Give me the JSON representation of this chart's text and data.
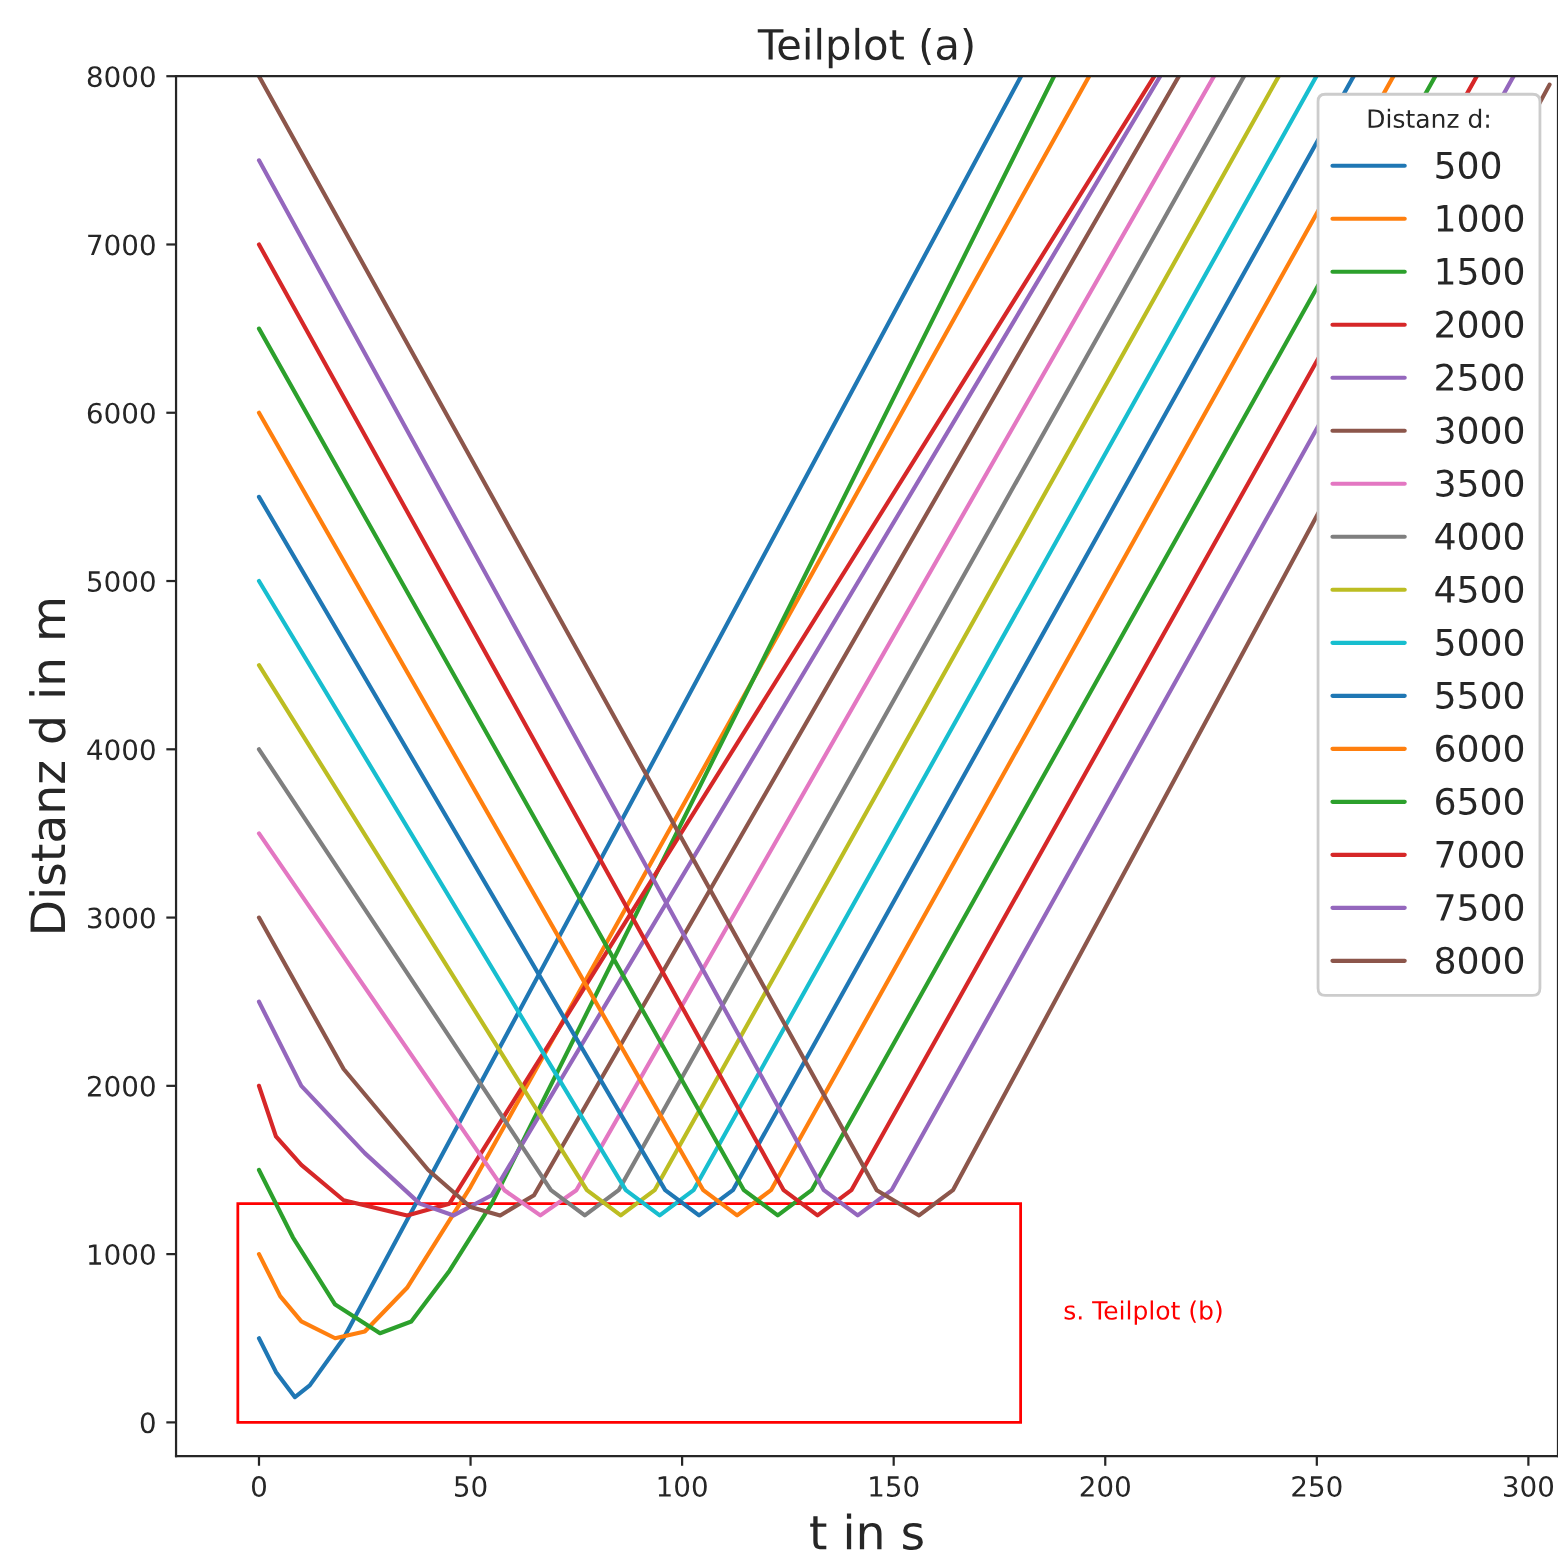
{
  "chart_data": {
    "type": "line",
    "title": "Teilplot (a)",
    "xlabel": "t in s",
    "ylabel": "Distanz d in m",
    "legend_title": "Distanz d:",
    "xlim": [
      -19.6,
      307
    ],
    "ylim": [
      -200,
      8000
    ],
    "xticks": [
      0,
      50,
      100,
      150,
      200,
      250,
      300
    ],
    "yticks": [
      0,
      1000,
      2000,
      3000,
      4000,
      5000,
      6000,
      7000,
      8000
    ],
    "legend": "top right",
    "grid": false,
    "marker": "none",
    "line_style": "solid",
    "annotations": [
      "s. Teilplot (b)"
    ],
    "series": [
      {
        "name": "500",
        "color": "#1f77b4",
        "x": [
          0,
          4,
          8.5,
          12,
          20,
          180.1
        ],
        "values": [
          500,
          300,
          150,
          220,
          500,
          8000
        ]
      },
      {
        "name": "1000",
        "color": "#ff7f0e",
        "x": [
          0,
          5,
          10,
          18,
          25,
          35,
          50,
          196.2
        ],
        "values": [
          1000,
          750,
          600,
          500,
          540,
          800,
          1400,
          8000
        ]
      },
      {
        "name": "1500",
        "color": "#2ca02c",
        "x": [
          0,
          8,
          18,
          28.6,
          36,
          45,
          55,
          187.9
        ],
        "values": [
          1500,
          1100,
          700,
          530,
          600,
          900,
          1300,
          8000
        ]
      },
      {
        "name": "2000",
        "color": "#d62728",
        "x": [
          0,
          4,
          10,
          20,
          35,
          45,
          211.6
        ],
        "values": [
          2000,
          1700,
          1530,
          1320,
          1230,
          1300,
          8000
        ]
      },
      {
        "name": "2500",
        "color": "#9467bd",
        "x": [
          0,
          10,
          25,
          38,
          46,
          55,
          213
        ],
        "values": [
          2500,
          2000,
          1600,
          1300,
          1230,
          1350,
          8000
        ]
      },
      {
        "name": "3000",
        "color": "#8c564b",
        "x": [
          0,
          20,
          40,
          50,
          57,
          65,
          217.4
        ],
        "values": [
          3000,
          2100,
          1500,
          1280,
          1230,
          1350,
          8000
        ]
      },
      {
        "name": "3500",
        "color": "#e377c2",
        "x": [
          0,
          58,
          66.5,
          75,
          225.7
        ],
        "values": [
          3500,
          1380,
          1230,
          1380,
          8000
        ]
      },
      {
        "name": "4000",
        "color": "#7f7f7f",
        "x": [
          0,
          69,
          77,
          85,
          232.8
        ],
        "values": [
          4000,
          1380,
          1230,
          1380,
          8000
        ]
      },
      {
        "name": "4500",
        "color": "#bcbd22",
        "x": [
          0,
          77.5,
          85.5,
          93.5,
          241
        ],
        "values": [
          4500,
          1380,
          1230,
          1380,
          8000
        ]
      },
      {
        "name": "5000",
        "color": "#17becf",
        "x": [
          0,
          86.7,
          94.7,
          102.7,
          249.9
        ],
        "values": [
          5000,
          1380,
          1230,
          1380,
          8000
        ]
      },
      {
        "name": "5500",
        "color": "#1f77b4",
        "x": [
          0,
          96,
          104,
          112,
          258.7
        ],
        "values": [
          5500,
          1380,
          1230,
          1380,
          8000
        ]
      },
      {
        "name": "6000",
        "color": "#ff7f0e",
        "x": [
          0,
          105,
          113,
          121,
          268.1
        ],
        "values": [
          6000,
          1380,
          1230,
          1380,
          8000
        ]
      },
      {
        "name": "6500",
        "color": "#2ca02c",
        "x": [
          0,
          114.6,
          122.6,
          130.6,
          278
        ],
        "values": [
          6500,
          1380,
          1230,
          1380,
          8000
        ]
      },
      {
        "name": "7000",
        "color": "#d62728",
        "x": [
          0,
          124,
          132,
          140,
          287.8
        ],
        "values": [
          7000,
          1380,
          1230,
          1380,
          8000
        ]
      },
      {
        "name": "7500",
        "color": "#9467bd",
        "x": [
          0,
          133.5,
          141.5,
          149.5,
          296.5
        ],
        "values": [
          7500,
          1380,
          1230,
          1380,
          8000
        ]
      },
      {
        "name": "8000",
        "color": "#8c564b",
        "x": [
          0,
          146,
          156,
          164,
          305
        ],
        "values": [
          8000,
          1380,
          1230,
          1380,
          7950
        ]
      }
    ]
  }
}
